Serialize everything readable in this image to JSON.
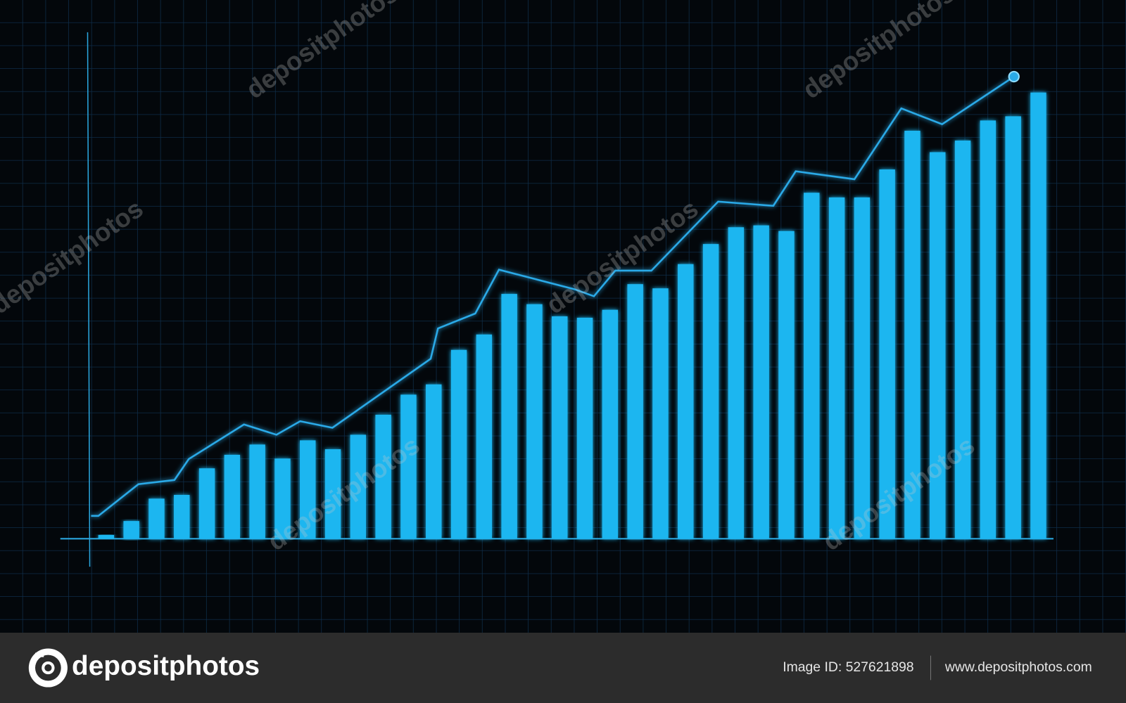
{
  "chart_data": {
    "type": "bar",
    "color": "#1db6f0",
    "x": [
      1,
      2,
      3,
      4,
      5,
      6,
      7,
      8,
      9,
      10,
      11,
      12,
      13,
      14,
      15,
      16,
      17,
      18,
      19,
      20,
      21,
      22,
      23,
      24,
      25,
      26,
      27,
      28,
      29,
      30,
      31,
      32,
      33,
      34,
      35,
      36,
      37,
      38
    ],
    "values": [
      0.8,
      3.8,
      8.6,
      9.4,
      15.1,
      18,
      20.2,
      17.2,
      21.1,
      19.2,
      22.3,
      26.6,
      30.9,
      33.1,
      40.5,
      43.8,
      52.5,
      50.3,
      47.7,
      47.4,
      49.1,
      54.6,
      53.7,
      58.9,
      63.2,
      66.8,
      67.2,
      66,
      74.2,
      73.2,
      73.2,
      79.2,
      87.5,
      82.9,
      85.4,
      89.7,
      90.6,
      95.7
    ],
    "xlim": [
      -0.82,
      38.6
    ],
    "ylim": [
      0,
      100
    ],
    "overlay": {
      "type": "line",
      "color": "#2aaae8",
      "x": [
        0.4,
        0.69,
        2.28,
        3.71,
        4.28,
        6.47,
        7.76,
        8.7,
        9.98,
        13.88,
        14.17,
        15.65,
        16.59,
        19.59,
        20.36,
        21.21,
        22.64,
        25.29,
        27.48,
        28.37,
        30.7,
        32.56,
        34.18,
        37.03
      ],
      "values": [
        4.9,
        4.9,
        11.7,
        12.6,
        17.1,
        24.5,
        22.3,
        25.2,
        23.8,
        38.6,
        45.1,
        48.3,
        57.7,
        53.5,
        52,
        57.5,
        57.5,
        72.3,
        71.4,
        78.8,
        77.1,
        92.3,
        88.9,
        99.1
      ]
    }
  },
  "watermark": "depositphotos",
  "footer": {
    "logo": "depositphotos",
    "image_id": "Image ID: 527621898",
    "site": "www.depositphotos.com"
  }
}
